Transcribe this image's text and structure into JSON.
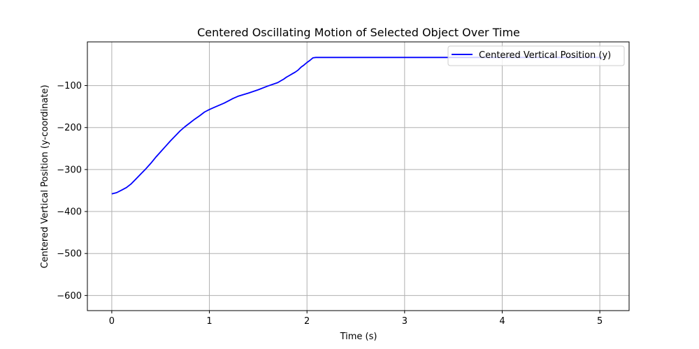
{
  "chart_data": {
    "type": "line",
    "title": "Centered Oscillating Motion of Selected Object Over Time",
    "xlabel": "Time (s)",
    "ylabel": "Centered Vertical Position (y-coordinate)",
    "xlim": [
      -0.25,
      5.3
    ],
    "ylim": [
      -636,
      4
    ],
    "xticks": [
      0,
      1,
      2,
      3,
      4,
      5
    ],
    "xtick_labels": [
      "0",
      "1",
      "2",
      "3",
      "4",
      "5"
    ],
    "yticks": [
      -100,
      -200,
      -300,
      -400,
      -500,
      -600
    ],
    "ytick_labels": [
      "−100",
      "−200",
      "−300",
      "−400",
      "−500",
      "−600"
    ],
    "grid": true,
    "legend_position": "top-right",
    "colors": {
      "series": "#0000ff",
      "grid": "#b0b0b0",
      "axes": "#000000"
    },
    "series": [
      {
        "name": "Centered Vertical Position (y)",
        "x": [
          0.0,
          0.05,
          0.1,
          0.15,
          0.2,
          0.25,
          0.3,
          0.35,
          0.4,
          0.45,
          0.5,
          0.55,
          0.6,
          0.65,
          0.7,
          0.75,
          0.8,
          0.85,
          0.9,
          0.95,
          1.0,
          1.05,
          1.1,
          1.15,
          1.2,
          1.24,
          1.3,
          1.4,
          1.5,
          1.6,
          1.7,
          1.73,
          1.76,
          1.79,
          1.82,
          1.85,
          1.88,
          1.91,
          1.94,
          1.97,
          2.0,
          2.03,
          2.06,
          2.09,
          2.12,
          2.15,
          2.18,
          2.21,
          2.24,
          2.27,
          2.3,
          2.33,
          2.36,
          2.39,
          2.42,
          2.45,
          2.48,
          2.51,
          2.54,
          2.57,
          2.6,
          2.63,
          2.66,
          2.69,
          2.72,
          2.75,
          2.78,
          2.81,
          2.84,
          2.87,
          2.9,
          2.93,
          2.96,
          2.99,
          3.02,
          3.05,
          3.08,
          3.11,
          3.14,
          3.17,
          3.2,
          3.23,
          3.26,
          3.29,
          3.32,
          3.35,
          3.38,
          3.41,
          3.44,
          3.47,
          3.5,
          3.53,
          3.56,
          3.59,
          3.62,
          3.65,
          3.68,
          3.71,
          3.74,
          3.77,
          3.8,
          3.83,
          3.86,
          3.89,
          3.92,
          3.95,
          3.98,
          4.01,
          4.04,
          4.07,
          4.1,
          4.13,
          4.16,
          4.19,
          4.22,
          4.25,
          4.28,
          4.31,
          4.34,
          4.37,
          4.4,
          4.43,
          4.46,
          4.49,
          4.52,
          4.55,
          4.58,
          4.61,
          4.64,
          4.67,
          4.7,
          4.73,
          4.76,
          4.79,
          4.82,
          4.85,
          4.88,
          4.91,
          4.94,
          4.97,
          5.0,
          5.03
        ],
        "y": [
          -358,
          -355,
          -349,
          -343,
          -334,
          -322,
          -310,
          -298,
          -285,
          -271,
          -258,
          -245,
          -232,
          -220,
          -208,
          -198,
          -189,
          -180,
          -172,
          -163,
          -157,
          -152,
          -147,
          -142,
          -136,
          -131,
          -125,
          -118,
          -110,
          -101,
          -93,
          -89,
          -85,
          -80,
          -76,
          -72,
          -68,
          -63,
          -56,
          -51,
          -45,
          -40,
          -34,
          -33,
          -33,
          -33,
          -33,
          -33,
          -33,
          -33,
          -33,
          -33,
          -33,
          -33,
          -33,
          -33,
          -33,
          -33,
          -33,
          -33,
          -33,
          -33,
          -33,
          -33,
          -33,
          -33,
          -33,
          -33,
          -33,
          -33,
          -33,
          -33,
          -33,
          -33,
          -33,
          -33,
          -33,
          -33,
          -33,
          -33,
          -33,
          -33,
          -33,
          -33,
          -33,
          -33,
          -33,
          -33,
          -33,
          -33,
          -33,
          -33,
          -33,
          -33,
          -33,
          -33,
          -33,
          -33,
          -33,
          -33,
          -33,
          -33,
          -33,
          -33,
          -33,
          -33,
          -33,
          -33,
          -33,
          -33,
          -33,
          -33,
          -33,
          -33,
          -33,
          -33,
          -33,
          -33,
          -33,
          -33,
          -33,
          -33,
          -33,
          -33,
          -33,
          -33,
          -33,
          -33,
          -33,
          -33,
          -33,
          -33,
          -33,
          -33,
          -33,
          -33,
          -33,
          -33,
          -33,
          -33,
          -33,
          -33
        ]
      }
    ]
  }
}
